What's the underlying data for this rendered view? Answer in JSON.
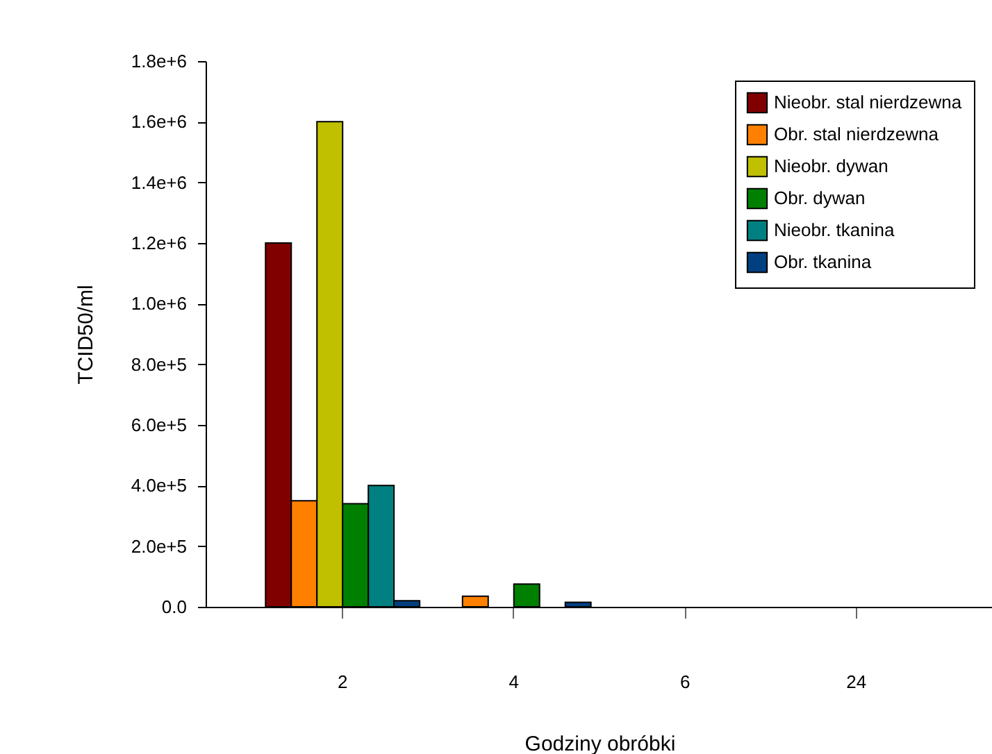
{
  "chart_data": {
    "type": "bar",
    "xlabel": "Godziny obróbki",
    "ylabel": "TCID50/ml",
    "categories": [
      "2",
      "4",
      "6",
      "24"
    ],
    "series": [
      {
        "name": "Nieobr. stal nierdzewna",
        "color": "#800000",
        "values": [
          1200000,
          null,
          null,
          null
        ]
      },
      {
        "name": "Obr. stal nierdzewna",
        "color": "#ff8000",
        "values": [
          350000,
          35000,
          null,
          null
        ]
      },
      {
        "name": "Nieobr. dywan",
        "color": "#c0c000",
        "values": [
          1600000,
          null,
          null,
          null
        ]
      },
      {
        "name": "Obr. dywan",
        "color": "#008000",
        "values": [
          340000,
          75000,
          null,
          null
        ]
      },
      {
        "name": "Nieobr. tkanina",
        "color": "#008080",
        "values": [
          400000,
          null,
          null,
          null
        ]
      },
      {
        "name": "Obr. tkanina",
        "color": "#004080",
        "values": [
          20000,
          15000,
          null,
          null
        ]
      }
    ],
    "ylim": [
      0,
      1800000
    ],
    "yticks": [
      {
        "value": 0,
        "label": "0.0"
      },
      {
        "value": 200000,
        "label": "2.0e+5"
      },
      {
        "value": 400000,
        "label": "4.0e+5"
      },
      {
        "value": 600000,
        "label": "6.0e+5"
      },
      {
        "value": 800000,
        "label": "8.0e+5"
      },
      {
        "value": 1000000,
        "label": "1.0e+6"
      },
      {
        "value": 1200000,
        "label": "1.2e+6"
      },
      {
        "value": 1400000,
        "label": "1.4e+6"
      },
      {
        "value": 1600000,
        "label": "1.6e+6"
      },
      {
        "value": 1800000,
        "label": "1.8e+6"
      }
    ],
    "grid": false,
    "legend": "top right"
  }
}
